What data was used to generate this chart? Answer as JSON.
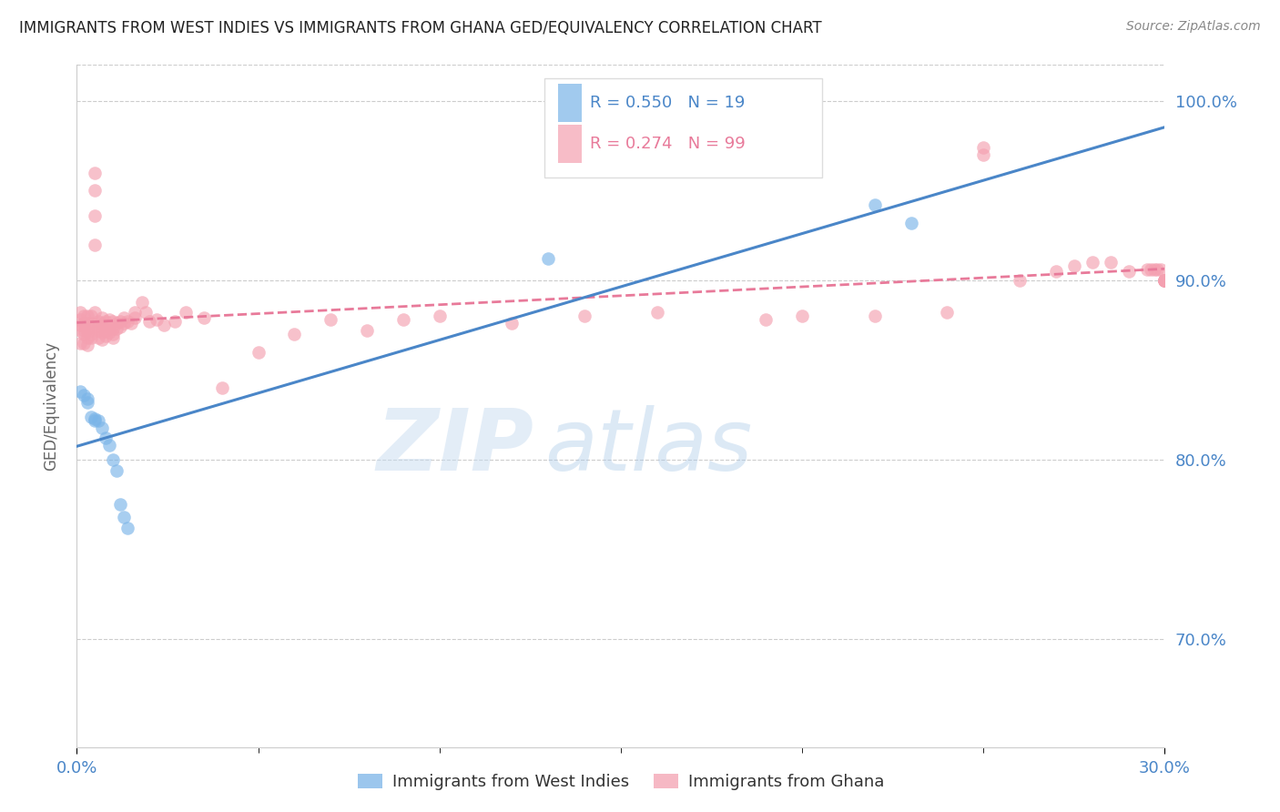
{
  "title": "IMMIGRANTS FROM WEST INDIES VS IMMIGRANTS FROM GHANA GED/EQUIVALENCY CORRELATION CHART",
  "source_text": "Source: ZipAtlas.com",
  "ylabel": "GED/Equivalency",
  "xlim": [
    0.0,
    0.3
  ],
  "ylim": [
    0.64,
    1.02
  ],
  "ytick_positions": [
    0.7,
    0.8,
    0.9,
    1.0
  ],
  "ytick_labels_right": [
    "70.0%",
    "80.0%",
    "90.0%",
    "100.0%"
  ],
  "xtick_positions": [
    0.0,
    0.3
  ],
  "xtick_labels": [
    "0.0%",
    "30.0%"
  ],
  "blue_color": "#7ab4e8",
  "pink_color": "#f4a0b0",
  "blue_line_color": "#4a86c8",
  "pink_line_color": "#e87a9a",
  "blue_R": 0.55,
  "blue_N": 19,
  "pink_R": 0.274,
  "pink_N": 99,
  "legend_label_blue": "Immigrants from West Indies",
  "legend_label_pink": "Immigrants from Ghana",
  "watermark_zip": "ZIP",
  "watermark_atlas": "atlas",
  "grid_color": "#cccccc",
  "bg_color": "#ffffff",
  "title_fontsize": 12,
  "tick_label_color": "#4a86c8",
  "ylabel_color": "#666666",
  "blue_points_x": [
    0.001,
    0.002,
    0.003,
    0.003,
    0.004,
    0.005,
    0.005,
    0.006,
    0.007,
    0.008,
    0.009,
    0.01,
    0.011,
    0.012,
    0.013,
    0.014,
    0.13,
    0.22,
    0.23
  ],
  "blue_points_y": [
    0.838,
    0.836,
    0.834,
    0.832,
    0.824,
    0.823,
    0.822,
    0.822,
    0.818,
    0.812,
    0.808,
    0.8,
    0.794,
    0.775,
    0.768,
    0.762,
    0.912,
    0.942,
    0.932
  ],
  "pink_points_x": [
    0.001,
    0.001,
    0.001,
    0.001,
    0.001,
    0.002,
    0.002,
    0.002,
    0.002,
    0.002,
    0.002,
    0.003,
    0.003,
    0.003,
    0.003,
    0.003,
    0.003,
    0.004,
    0.004,
    0.004,
    0.004,
    0.004,
    0.005,
    0.005,
    0.005,
    0.005,
    0.005,
    0.006,
    0.006,
    0.006,
    0.006,
    0.007,
    0.007,
    0.007,
    0.007,
    0.007,
    0.008,
    0.008,
    0.008,
    0.008,
    0.009,
    0.009,
    0.009,
    0.01,
    0.01,
    0.01,
    0.01,
    0.011,
    0.011,
    0.012,
    0.012,
    0.013,
    0.013,
    0.014,
    0.015,
    0.016,
    0.016,
    0.018,
    0.019,
    0.02,
    0.022,
    0.024,
    0.027,
    0.03,
    0.035,
    0.04,
    0.05,
    0.06,
    0.07,
    0.08,
    0.09,
    0.1,
    0.12,
    0.14,
    0.16,
    0.19,
    0.2,
    0.22,
    0.24,
    0.25,
    0.25,
    0.26,
    0.27,
    0.275,
    0.28,
    0.285,
    0.29,
    0.295,
    0.296,
    0.297,
    0.298,
    0.299,
    0.3,
    0.3,
    0.3,
    0.3,
    0.3,
    0.3,
    0.3
  ],
  "pink_points_y": [
    0.882,
    0.878,
    0.875,
    0.872,
    0.865,
    0.88,
    0.876,
    0.875,
    0.872,
    0.87,
    0.865,
    0.88,
    0.876,
    0.873,
    0.871,
    0.868,
    0.864,
    0.88,
    0.876,
    0.874,
    0.87,
    0.868,
    0.96,
    0.95,
    0.936,
    0.92,
    0.882,
    0.877,
    0.874,
    0.872,
    0.868,
    0.879,
    0.876,
    0.874,
    0.871,
    0.867,
    0.877,
    0.875,
    0.872,
    0.869,
    0.878,
    0.874,
    0.871,
    0.877,
    0.873,
    0.87,
    0.868,
    0.876,
    0.873,
    0.877,
    0.874,
    0.879,
    0.876,
    0.877,
    0.876,
    0.882,
    0.879,
    0.888,
    0.882,
    0.877,
    0.878,
    0.875,
    0.877,
    0.882,
    0.879,
    0.84,
    0.86,
    0.87,
    0.878,
    0.872,
    0.878,
    0.88,
    0.876,
    0.88,
    0.882,
    0.878,
    0.88,
    0.88,
    0.882,
    0.974,
    0.97,
    0.9,
    0.905,
    0.908,
    0.91,
    0.91,
    0.905,
    0.906,
    0.906,
    0.906,
    0.906,
    0.906,
    0.9,
    0.9,
    0.9,
    0.9,
    0.9,
    0.9,
    0.9
  ]
}
